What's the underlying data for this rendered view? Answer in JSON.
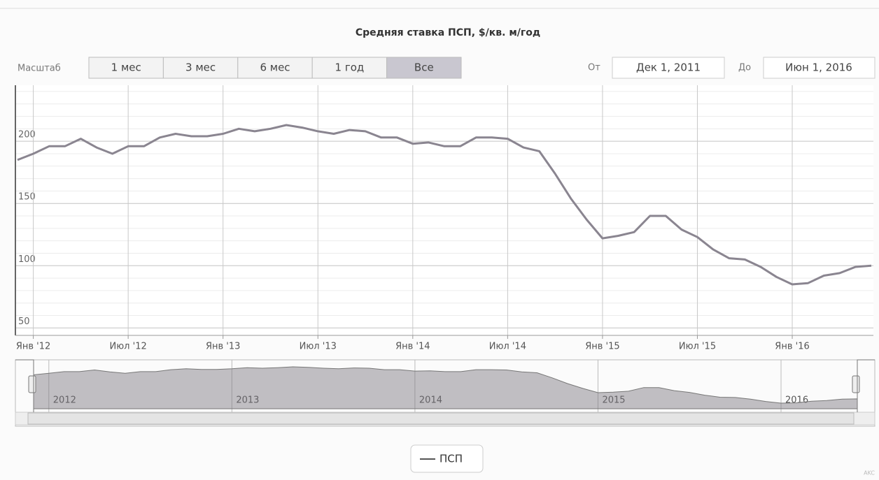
{
  "chart_data": {
    "type": "line",
    "title": "Средняя ставка ПСП, $/кв. м/год",
    "range_selector": {
      "label": "Масштаб",
      "buttons": [
        "1 мес",
        "3 мес",
        "6 мес",
        "1 год",
        "Все"
      ],
      "selected": 4,
      "from_label": "От",
      "from": "Дек 1, 2011",
      "to_label": "До",
      "to": "Июн 1, 2016"
    },
    "x": [
      "2011-12",
      "2012-01",
      "2012-02",
      "2012-03",
      "2012-04",
      "2012-05",
      "2012-06",
      "2012-07",
      "2012-08",
      "2012-09",
      "2012-10",
      "2012-11",
      "2012-12",
      "2013-01",
      "2013-02",
      "2013-03",
      "2013-04",
      "2013-05",
      "2013-06",
      "2013-07",
      "2013-08",
      "2013-09",
      "2013-10",
      "2013-11",
      "2013-12",
      "2014-01",
      "2014-02",
      "2014-03",
      "2014-04",
      "2014-05",
      "2014-06",
      "2014-07",
      "2014-08",
      "2014-09",
      "2014-10",
      "2014-11",
      "2014-12",
      "2015-01",
      "2015-02",
      "2015-03",
      "2015-04",
      "2015-05",
      "2015-06",
      "2015-07",
      "2015-08",
      "2015-09",
      "2015-10",
      "2015-11",
      "2015-12",
      "2016-01",
      "2016-02",
      "2016-03",
      "2016-04",
      "2016-05",
      "2016-06"
    ],
    "series": [
      {
        "name": "ПСП",
        "color": "#8a8590",
        "values": [
          185,
          190,
          196,
          196,
          202,
          195,
          190,
          196,
          196,
          203,
          206,
          204,
          204,
          206,
          210,
          208,
          210,
          213,
          211,
          208,
          206,
          209,
          208,
          203,
          203,
          198,
          199,
          196,
          196,
          203,
          203,
          202,
          195,
          192,
          174,
          154,
          137,
          122,
          124,
          127,
          140,
          140,
          129,
          123,
          113,
          106,
          105,
          99,
          91,
          85,
          86,
          92,
          94,
          99,
          100
        ]
      }
    ],
    "xlim": [
      "2011-12",
      "2016-06"
    ],
    "xticks": [
      {
        "value": "2012-01",
        "label": "Янв '12"
      },
      {
        "value": "2012-07",
        "label": "Июл '12"
      },
      {
        "value": "2013-01",
        "label": "Янв '13"
      },
      {
        "value": "2013-07",
        "label": "Июл '13"
      },
      {
        "value": "2014-01",
        "label": "Янв '14"
      },
      {
        "value": "2014-07",
        "label": "Июл '14"
      },
      {
        "value": "2015-01",
        "label": "Янв '15"
      },
      {
        "value": "2015-07",
        "label": "Июл '15"
      },
      {
        "value": "2016-01",
        "label": "Янв '16"
      }
    ],
    "ylim": [
      44,
      245
    ],
    "yticks": [
      50,
      100,
      150,
      200
    ],
    "grid": true,
    "navigator": {
      "ticks": [
        {
          "value": "2012-01",
          "label": "2012"
        },
        {
          "value": "2013-01",
          "label": "2013"
        },
        {
          "value": "2014-01",
          "label": "2014"
        },
        {
          "value": "2015-01",
          "label": "2015"
        },
        {
          "value": "2016-01",
          "label": "2016"
        }
      ]
    },
    "credit": "AKC"
  }
}
